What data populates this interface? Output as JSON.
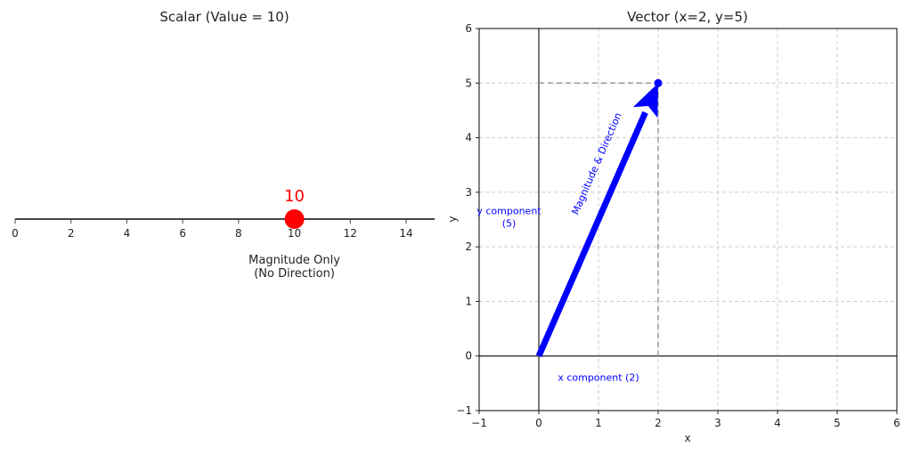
{
  "chart_data": [
    {
      "type": "scalar-number-line",
      "title": "Scalar (Value = 10)",
      "value": 10,
      "value_label": "10",
      "xlim": [
        -0.3,
        15
      ],
      "ticks": [
        0,
        2,
        4,
        6,
        8,
        10,
        12,
        14
      ],
      "annotation": [
        "Magnitude Only",
        "(No Direction)"
      ],
      "colors": {
        "point": "#ff0000",
        "axis": "#444444"
      }
    },
    {
      "type": "vector",
      "title": "Vector (x=2, y=5)",
      "xlabel": "x",
      "ylabel": "y",
      "xlim": [
        -1,
        6
      ],
      "ylim": [
        -1,
        6
      ],
      "xticks": [
        -1,
        0,
        1,
        2,
        3,
        4,
        5,
        6
      ],
      "yticks": [
        -1,
        0,
        1,
        2,
        3,
        4,
        5,
        6
      ],
      "grid": true,
      "vector": {
        "x0": 0,
        "y0": 0,
        "x1": 2,
        "y1": 5
      },
      "vector_label": "Magnitude & Direction",
      "x_component_label": "x component (2)",
      "y_component_label": [
        "y component",
        "(5)"
      ],
      "colors": {
        "vector": "#0000ff",
        "component_lines": "#999999"
      }
    }
  ]
}
